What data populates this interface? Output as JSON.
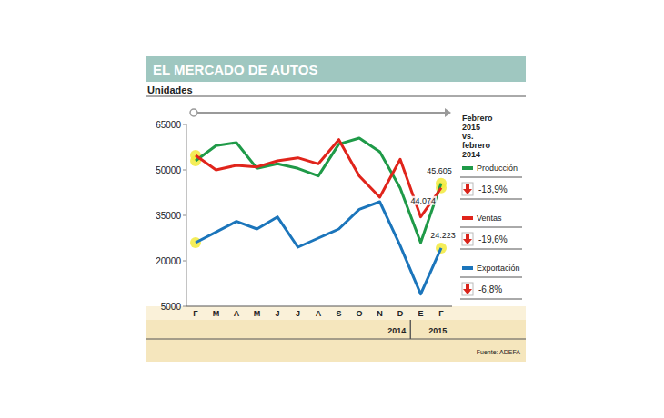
{
  "chart_data": {
    "type": "line",
    "title": "EL MERCADO DE AUTOS",
    "y_label": "Unidades",
    "source": "Fuente: ADEFA",
    "legend_title": "Febrero 2015 vs. febrero 2014",
    "legend": "right",
    "grid": false,
    "categories": [
      "F",
      "M",
      "A",
      "M",
      "J",
      "J",
      "A",
      "S",
      "O",
      "N",
      "D",
      "E",
      "F"
    ],
    "x_groups": [
      {
        "label": "2014",
        "start": 0,
        "end": 10
      },
      {
        "label": "2015",
        "start": 11,
        "end": 12
      }
    ],
    "ylim": [
      5000,
      65000
    ],
    "yticks": [
      5000,
      20000,
      35000,
      50000,
      65000
    ],
    "series": [
      {
        "name": "Producción",
        "color": "#1f9a48",
        "change": "-13,9%",
        "values": [
          53000,
          58000,
          59000,
          50500,
          52000,
          50500,
          48000,
          58500,
          60500,
          56000,
          44000,
          26000,
          45605
        ],
        "value_labels": [
          null,
          null,
          null,
          null,
          null,
          null,
          null,
          null,
          null,
          null,
          null,
          null,
          "45.605"
        ]
      },
      {
        "name": "Ventas",
        "color": "#e0241b",
        "change": "-19,6%",
        "values": [
          54800,
          50000,
          51500,
          51000,
          53000,
          54000,
          52000,
          60000,
          48000,
          41000,
          53500,
          34500,
          44074
        ],
        "value_labels": [
          null,
          null,
          null,
          null,
          null,
          null,
          null,
          null,
          null,
          null,
          null,
          null,
          "44.074"
        ]
      },
      {
        "name": "Exportación",
        "color": "#1b75bb",
        "change": "-6,8%",
        "values": [
          26000,
          29500,
          33000,
          30500,
          34500,
          24500,
          27500,
          30500,
          37000,
          39500,
          25000,
          9000,
          24223
        ],
        "value_labels": [
          null,
          null,
          null,
          null,
          null,
          null,
          null,
          null,
          null,
          null,
          null,
          null,
          "24.223"
        ]
      }
    ]
  }
}
